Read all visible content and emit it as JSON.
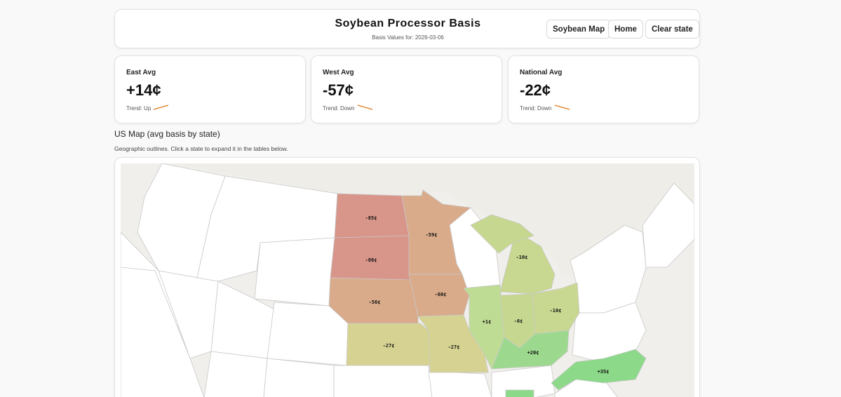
{
  "header": {
    "title": "Soybean Processor Basis",
    "subtitle": "Basis Values for: 2026-03-06",
    "buttons": {
      "map": "Soybean Map",
      "home": "Home",
      "clear": "Clear state"
    }
  },
  "stats": [
    {
      "label": "East Avg",
      "value": "+14¢",
      "trend": "Trend: Up",
      "direction": "up"
    },
    {
      "label": "West Avg",
      "value": "-57¢",
      "trend": "Trend: Down",
      "direction": "down"
    },
    {
      "label": "National Avg",
      "value": "-22¢",
      "trend": "Trend: Down",
      "direction": "down"
    }
  ],
  "map_section": {
    "title": "US Map (avg basis by state)",
    "description": "Geographic outlines. Click a state to expand it in the tables below."
  },
  "states": {
    "ND": {
      "basis": "-85¢",
      "color": "#d8958a"
    },
    "SD": {
      "basis": "-86¢",
      "color": "#d8958a"
    },
    "MN": {
      "basis": "-59¢",
      "color": "#d9ab8a"
    },
    "NE": {
      "basis": "-56¢",
      "color": "#d9ab8a"
    },
    "IA": {
      "basis": "-60¢",
      "color": "#d9ab8a"
    },
    "KS": {
      "basis": "-27¢",
      "color": "#d6d392"
    },
    "MO": {
      "basis": "-27¢",
      "color": "#d6d392"
    },
    "IL": {
      "basis": "+1¢",
      "color": "#bfdc94"
    },
    "IN": {
      "basis": "-6¢",
      "color": "#c6d890"
    },
    "MI": {
      "basis": "-10¢",
      "color": "#c9d890"
    },
    "OH": {
      "basis": "-10¢",
      "color": "#c9d890"
    },
    "KY": {
      "basis": "+20¢",
      "color": "#9cd98e"
    },
    "NC": {
      "basis": "+35¢",
      "color": "#8cd98a"
    },
    "WI": {
      "basis": "",
      "color": "#c6d88f"
    },
    "TN": {
      "basis": "",
      "color": "#8cd98a"
    }
  },
  "colors": {
    "accent": "#e07b1a",
    "map_background": "#f1efeb",
    "state_default": "#ffffff",
    "state_border": "#c8c8c8"
  }
}
